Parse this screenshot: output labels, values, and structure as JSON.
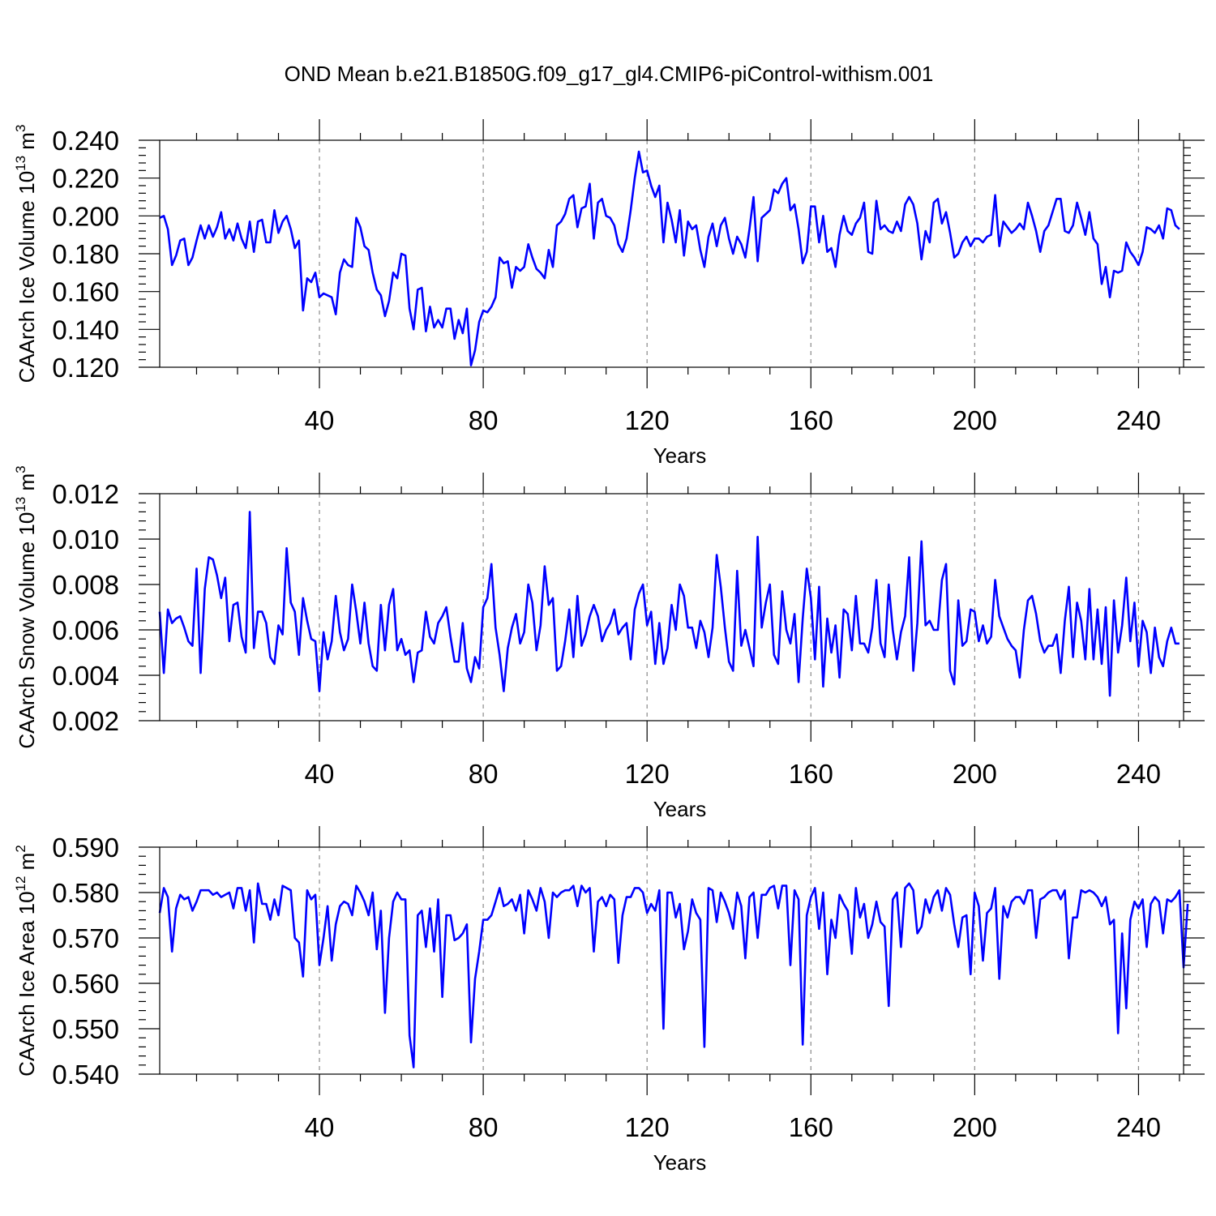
{
  "title": "OND Mean b.e21.B1850G.f09_g17_gl4.CMIP6-piControl-withism.001",
  "colors": {
    "line": "#0000ff",
    "axis": "#000000",
    "grid": "#8a8a8a"
  },
  "chart_data": [
    {
      "type": "line",
      "id": "ice-volume",
      "ylabel_main": "CAArch Ice Volume 10",
      "ylabel_exp": "13",
      "ylabel_unit": " m",
      "ylabel_unit_exp": "3",
      "xlabel": "Years",
      "xlim": [
        1,
        251
      ],
      "ylim": [
        0.12,
        0.24
      ],
      "yticks": [
        0.12,
        0.14,
        0.16,
        0.18,
        0.2,
        0.22,
        0.24
      ],
      "ytick_labels": [
        "0.120",
        "0.140",
        "0.160",
        "0.180",
        "0.200",
        "0.220",
        "0.240"
      ],
      "xticks": [
        40,
        80,
        120,
        160,
        200,
        240
      ],
      "xtick_labels": [
        "40",
        "80",
        "120",
        "160",
        "200",
        "240"
      ],
      "grid": "x-dashed",
      "series": [
        {
          "name": "CAArch Ice Volume",
          "values": [
            0.199,
            0.2,
            0.193,
            0.174,
            0.179,
            0.187,
            0.188,
            0.174,
            0.178,
            0.187,
            0.195,
            0.188,
            0.195,
            0.189,
            0.194,
            0.202,
            0.188,
            0.193,
            0.187,
            0.196,
            0.188,
            0.183,
            0.197,
            0.181,
            0.197,
            0.198,
            0.186,
            0.186,
            0.203,
            0.191,
            0.197,
            0.2,
            0.193,
            0.183,
            0.187,
            0.15,
            0.167,
            0.165,
            0.17,
            0.157,
            0.159,
            0.158,
            0.157,
            0.148,
            0.17,
            0.177,
            0.174,
            0.173,
            0.199,
            0.194,
            0.184,
            0.182,
            0.17,
            0.161,
            0.158,
            0.147,
            0.155,
            0.17,
            0.167,
            0.18,
            0.179,
            0.151,
            0.14,
            0.161,
            0.162,
            0.139,
            0.152,
            0.141,
            0.145,
            0.141,
            0.151,
            0.151,
            0.135,
            0.145,
            0.138,
            0.151,
            0.121,
            0.129,
            0.144,
            0.15,
            0.149,
            0.152,
            0.157,
            0.178,
            0.175,
            0.176,
            0.162,
            0.173,
            0.171,
            0.173,
            0.185,
            0.178,
            0.172,
            0.17,
            0.167,
            0.182,
            0.173,
            0.195,
            0.197,
            0.201,
            0.209,
            0.211,
            0.194,
            0.204,
            0.205,
            0.217,
            0.188,
            0.207,
            0.209,
            0.2,
            0.199,
            0.195,
            0.185,
            0.181,
            0.188,
            0.203,
            0.22,
            0.234,
            0.223,
            0.224,
            0.216,
            0.21,
            0.216,
            0.186,
            0.207,
            0.198,
            0.186,
            0.203,
            0.179,
            0.197,
            0.193,
            0.195,
            0.182,
            0.173,
            0.189,
            0.196,
            0.184,
            0.195,
            0.199,
            0.188,
            0.18,
            0.189,
            0.185,
            0.178,
            0.193,
            0.21,
            0.176,
            0.199,
            0.201,
            0.203,
            0.214,
            0.212,
            0.217,
            0.22,
            0.203,
            0.206,
            0.193,
            0.175,
            0.181,
            0.205,
            0.205,
            0.186,
            0.2,
            0.181,
            0.183,
            0.173,
            0.19,
            0.2,
            0.192,
            0.19,
            0.196,
            0.199,
            0.207,
            0.181,
            0.18,
            0.208,
            0.193,
            0.195,
            0.192,
            0.191,
            0.197,
            0.192,
            0.206,
            0.21,
            0.206,
            0.196,
            0.177,
            0.192,
            0.186,
            0.207,
            0.209,
            0.196,
            0.202,
            0.191,
            0.178,
            0.18,
            0.186,
            0.189,
            0.184,
            0.188,
            0.188,
            0.186,
            0.189,
            0.19,
            0.211,
            0.184,
            0.197,
            0.194,
            0.191,
            0.193,
            0.196,
            0.193,
            0.207,
            0.2,
            0.192,
            0.181,
            0.192,
            0.195,
            0.202,
            0.209,
            0.209,
            0.192,
            0.191,
            0.195,
            0.207,
            0.199,
            0.19,
            0.202,
            0.188,
            0.185,
            0.164,
            0.173,
            0.157,
            0.171,
            0.17,
            0.171,
            0.186,
            0.181,
            0.178,
            0.174,
            0.181,
            0.194,
            0.193,
            0.191,
            0.195,
            0.188,
            0.204,
            0.203,
            0.195,
            0.193
          ]
        }
      ]
    },
    {
      "type": "line",
      "id": "snow-volume",
      "ylabel_main": "CAArch Snow Volume 10",
      "ylabel_exp": "13",
      "ylabel_unit": " m",
      "ylabel_unit_exp": "3",
      "xlabel": "Years",
      "xlim": [
        1,
        251
      ],
      "ylim": [
        0.002,
        0.012
      ],
      "yticks": [
        0.002,
        0.004,
        0.006,
        0.008,
        0.01,
        0.012
      ],
      "ytick_labels": [
        "0.002",
        "0.004",
        "0.006",
        "0.008",
        "0.010",
        "0.012"
      ],
      "xticks": [
        40,
        80,
        120,
        160,
        200,
        240
      ],
      "xtick_labels": [
        "40",
        "80",
        "120",
        "160",
        "200",
        "240"
      ],
      "grid": "x-dashed",
      "series": [
        {
          "name": "CAArch Snow Volume",
          "values": [
            0.0068,
            0.0041,
            0.0069,
            0.0063,
            0.0065,
            0.0066,
            0.0061,
            0.0055,
            0.0053,
            0.0087,
            0.0041,
            0.0078,
            0.0092,
            0.0091,
            0.0084,
            0.0074,
            0.0083,
            0.0055,
            0.0071,
            0.0072,
            0.0057,
            0.005,
            0.0112,
            0.0052,
            0.0068,
            0.0068,
            0.0063,
            0.0048,
            0.0045,
            0.0062,
            0.0058,
            0.0096,
            0.0072,
            0.0068,
            0.0049,
            0.0074,
            0.0064,
            0.0056,
            0.0055,
            0.0033,
            0.0059,
            0.0047,
            0.0055,
            0.0075,
            0.0059,
            0.0051,
            0.0056,
            0.008,
            0.0068,
            0.0054,
            0.0072,
            0.0054,
            0.0044,
            0.0042,
            0.0071,
            0.0051,
            0.0071,
            0.0078,
            0.0051,
            0.0056,
            0.0049,
            0.0051,
            0.0037,
            0.005,
            0.0051,
            0.0068,
            0.0057,
            0.0054,
            0.0063,
            0.0066,
            0.007,
            0.0057,
            0.0046,
            0.0046,
            0.0063,
            0.0043,
            0.0037,
            0.0048,
            0.0043,
            0.007,
            0.0074,
            0.0089,
            0.0061,
            0.0049,
            0.0033,
            0.0052,
            0.0061,
            0.0067,
            0.0054,
            0.0059,
            0.008,
            0.0072,
            0.0051,
            0.0062,
            0.0088,
            0.0071,
            0.0074,
            0.0042,
            0.0044,
            0.0055,
            0.0069,
            0.0048,
            0.0075,
            0.0053,
            0.0058,
            0.0066,
            0.0071,
            0.0066,
            0.0055,
            0.006,
            0.0063,
            0.0069,
            0.0058,
            0.0061,
            0.0063,
            0.0047,
            0.0069,
            0.0076,
            0.008,
            0.0062,
            0.0068,
            0.0045,
            0.0063,
            0.0045,
            0.0052,
            0.0071,
            0.006,
            0.008,
            0.0075,
            0.0061,
            0.0061,
            0.0052,
            0.0064,
            0.0059,
            0.0048,
            0.0061,
            0.0093,
            0.0079,
            0.0061,
            0.0046,
            0.0042,
            0.0086,
            0.0053,
            0.006,
            0.0052,
            0.0044,
            0.0101,
            0.0061,
            0.0072,
            0.008,
            0.0049,
            0.0045,
            0.0077,
            0.006,
            0.0054,
            0.0067,
            0.0037,
            0.0065,
            0.0087,
            0.0074,
            0.0047,
            0.0079,
            0.0035,
            0.0065,
            0.005,
            0.0062,
            0.0039,
            0.0069,
            0.0067,
            0.0051,
            0.0075,
            0.0054,
            0.0054,
            0.005,
            0.0061,
            0.0082,
            0.0054,
            0.0048,
            0.008,
            0.006,
            0.0047,
            0.0059,
            0.0066,
            0.0092,
            0.0042,
            0.0063,
            0.0099,
            0.0062,
            0.0064,
            0.006,
            0.006,
            0.0082,
            0.0089,
            0.0042,
            0.0036,
            0.0073,
            0.0053,
            0.0055,
            0.0069,
            0.0068,
            0.0055,
            0.0062,
            0.0054,
            0.0057,
            0.0082,
            0.0066,
            0.0061,
            0.0056,
            0.0053,
            0.0051,
            0.0039,
            0.006,
            0.0073,
            0.0075,
            0.0067,
            0.0055,
            0.005,
            0.0053,
            0.0053,
            0.0058,
            0.0041,
            0.0064,
            0.0079,
            0.0048,
            0.0072,
            0.0064,
            0.0047,
            0.0078,
            0.0047,
            0.0069,
            0.0045,
            0.007,
            0.0031,
            0.0073,
            0.005,
            0.0062,
            0.0083,
            0.0055,
            0.0072,
            0.0044,
            0.0064,
            0.0059,
            0.0041,
            0.0061,
            0.0048,
            0.0044,
            0.0055,
            0.0061,
            0.0054,
            0.0054
          ]
        }
      ]
    },
    {
      "type": "line",
      "id": "ice-area",
      "ylabel_main": "CAArch Ice Area 10",
      "ylabel_exp": "12",
      "ylabel_unit": " m",
      "ylabel_unit_exp": "2",
      "xlabel": "Years",
      "xlim": [
        1,
        251
      ],
      "ylim": [
        0.54,
        0.59
      ],
      "yticks": [
        0.54,
        0.55,
        0.56,
        0.57,
        0.58,
        0.59
      ],
      "ytick_labels": [
        "0.540",
        "0.550",
        "0.560",
        "0.570",
        "0.580",
        "0.590"
      ],
      "xticks": [
        40,
        80,
        120,
        160,
        200,
        240
      ],
      "xtick_labels": [
        "40",
        "80",
        "120",
        "160",
        "200",
        "240"
      ],
      "grid": "x-dashed",
      "series": [
        {
          "name": "CAArch Ice Area",
          "values": [
            0.5755,
            0.581,
            0.579,
            0.567,
            0.5765,
            0.5795,
            0.5785,
            0.579,
            0.576,
            0.578,
            0.5805,
            0.5805,
            0.5805,
            0.5795,
            0.58,
            0.579,
            0.5795,
            0.58,
            0.5765,
            0.581,
            0.581,
            0.576,
            0.5805,
            0.569,
            0.582,
            0.5775,
            0.5775,
            0.574,
            0.5785,
            0.575,
            0.5815,
            0.581,
            0.5805,
            0.57,
            0.569,
            0.5615,
            0.5805,
            0.5785,
            0.5795,
            0.564,
            0.57,
            0.577,
            0.565,
            0.573,
            0.577,
            0.578,
            0.5775,
            0.575,
            0.5815,
            0.58,
            0.578,
            0.575,
            0.58,
            0.5675,
            0.576,
            0.5535,
            0.57,
            0.578,
            0.58,
            0.5785,
            0.5785,
            0.5485,
            0.5415,
            0.575,
            0.576,
            0.568,
            0.5765,
            0.567,
            0.5785,
            0.557,
            0.575,
            0.575,
            0.5695,
            0.57,
            0.571,
            0.573,
            0.547,
            0.561,
            0.567,
            0.574,
            0.574,
            0.575,
            0.578,
            0.581,
            0.577,
            0.5775,
            0.5785,
            0.576,
            0.5795,
            0.571,
            0.5805,
            0.5785,
            0.576,
            0.581,
            0.578,
            0.57,
            0.58,
            0.579,
            0.58,
            0.5805,
            0.5805,
            0.5815,
            0.577,
            0.5815,
            0.58,
            0.581,
            0.567,
            0.578,
            0.579,
            0.577,
            0.5795,
            0.5785,
            0.5645,
            0.575,
            0.579,
            0.579,
            0.581,
            0.581,
            0.58,
            0.5755,
            0.5775,
            0.576,
            0.5805,
            0.55,
            0.58,
            0.58,
            0.5745,
            0.5775,
            0.5675,
            0.5715,
            0.5785,
            0.5755,
            0.574,
            0.546,
            0.581,
            0.5805,
            0.5735,
            0.58,
            0.578,
            0.5755,
            0.572,
            0.58,
            0.577,
            0.5655,
            0.579,
            0.58,
            0.57,
            0.5795,
            0.5795,
            0.581,
            0.5815,
            0.5765,
            0.5815,
            0.5815,
            0.564,
            0.5805,
            0.5785,
            0.5465,
            0.575,
            0.579,
            0.581,
            0.572,
            0.58,
            0.562,
            0.574,
            0.57,
            0.5795,
            0.5775,
            0.576,
            0.5665,
            0.581,
            0.5745,
            0.5775,
            0.57,
            0.573,
            0.578,
            0.5735,
            0.5725,
            0.555,
            0.5785,
            0.58,
            0.568,
            0.581,
            0.582,
            0.5805,
            0.571,
            0.5725,
            0.5785,
            0.5755,
            0.579,
            0.5805,
            0.576,
            0.581,
            0.5795,
            0.573,
            0.568,
            0.5745,
            0.575,
            0.562,
            0.58,
            0.577,
            0.565,
            0.5755,
            0.5765,
            0.581,
            0.561,
            0.577,
            0.5745,
            0.578,
            0.579,
            0.579,
            0.5775,
            0.5805,
            0.5805,
            0.57,
            0.5785,
            0.579,
            0.58,
            0.5805,
            0.5805,
            0.5785,
            0.5805,
            0.5655,
            0.5745,
            0.5745,
            0.5805,
            0.58,
            0.5805,
            0.58,
            0.579,
            0.577,
            0.579,
            0.573,
            0.574,
            0.549,
            0.571,
            0.5545,
            0.574,
            0.578,
            0.5765,
            0.5785,
            0.568,
            0.5775,
            0.579,
            0.578,
            0.571,
            0.5785,
            0.578,
            0.579,
            0.5805,
            0.5635,
            0.5775
          ]
        }
      ]
    }
  ]
}
